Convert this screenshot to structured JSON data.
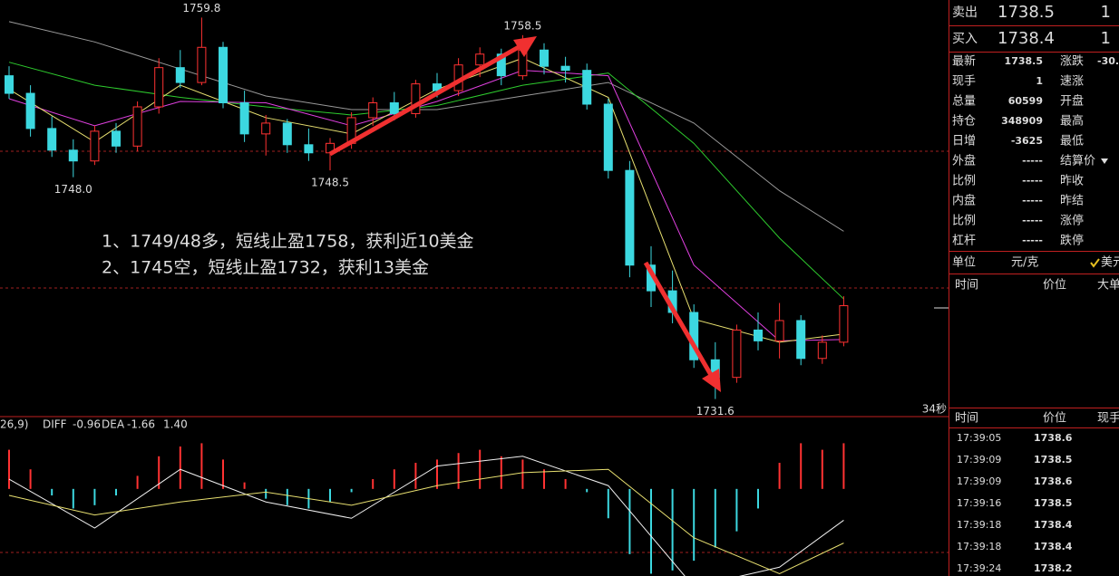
{
  "chart": {
    "ylim": [
      1730.3,
      1761.1
    ],
    "candles": [
      [
        1755.5,
        1756.2,
        1753.8,
        1754.2
      ],
      [
        1754.2,
        1754.8,
        1751.0,
        1751.6
      ],
      [
        1751.6,
        1752.5,
        1749.5,
        1750.0
      ],
      [
        1750.0,
        1750.8,
        1748.0,
        1749.2
      ],
      [
        1749.2,
        1751.8,
        1748.9,
        1751.4
      ],
      [
        1751.4,
        1752.0,
        1749.8,
        1750.3
      ],
      [
        1750.3,
        1753.6,
        1749.9,
        1753.2
      ],
      [
        1753.2,
        1756.8,
        1752.7,
        1756.1
      ],
      [
        1756.1,
        1757.4,
        1754.6,
        1755.0
      ],
      [
        1755.0,
        1759.8,
        1754.8,
        1757.6
      ],
      [
        1757.6,
        1758.0,
        1753.1,
        1753.5
      ],
      [
        1753.5,
        1754.4,
        1750.6,
        1751.2
      ],
      [
        1751.2,
        1752.6,
        1749.6,
        1752.0
      ],
      [
        1752.0,
        1752.3,
        1749.8,
        1750.4
      ],
      [
        1750.4,
        1751.6,
        1749.2,
        1749.8
      ],
      [
        1749.8,
        1750.9,
        1748.5,
        1750.5
      ],
      [
        1750.5,
        1752.8,
        1750.1,
        1752.4
      ],
      [
        1752.4,
        1753.9,
        1751.8,
        1753.5
      ],
      [
        1753.5,
        1754.3,
        1752.2,
        1752.7
      ],
      [
        1752.7,
        1755.2,
        1752.4,
        1754.9
      ],
      [
        1754.9,
        1755.7,
        1753.9,
        1754.4
      ],
      [
        1754.4,
        1756.8,
        1754.0,
        1756.3
      ],
      [
        1756.3,
        1757.6,
        1755.4,
        1757.1
      ],
      [
        1757.1,
        1757.5,
        1754.8,
        1755.5
      ],
      [
        1755.5,
        1758.5,
        1755.2,
        1757.4
      ],
      [
        1757.4,
        1757.9,
        1755.6,
        1756.2
      ],
      [
        1756.2,
        1756.9,
        1755.0,
        1755.9
      ],
      [
        1755.9,
        1756.4,
        1753.0,
        1753.4
      ],
      [
        1753.4,
        1753.8,
        1747.9,
        1748.5
      ],
      [
        1748.5,
        1749.2,
        1740.6,
        1741.5
      ],
      [
        1741.5,
        1742.9,
        1738.4,
        1739.6
      ],
      [
        1739.6,
        1741.1,
        1737.2,
        1738.0
      ],
      [
        1738.0,
        1738.6,
        1733.9,
        1734.5
      ],
      [
        1734.5,
        1735.8,
        1731.6,
        1733.2
      ],
      [
        1733.2,
        1737.1,
        1732.8,
        1736.7
      ],
      [
        1736.7,
        1738.0,
        1735.2,
        1735.9
      ],
      [
        1735.9,
        1738.7,
        1734.6,
        1737.4
      ],
      [
        1737.4,
        1737.8,
        1734.1,
        1734.6
      ],
      [
        1734.6,
        1736.3,
        1734.2,
        1735.8
      ],
      [
        1735.8,
        1739.2,
        1735.5,
        1738.5
      ]
    ],
    "ma_x": [
      0,
      4,
      8,
      12,
      16,
      20,
      24,
      28,
      32,
      36,
      39
    ],
    "ma": [
      {
        "color": "#9a9a9a",
        "values": [
          1759.5,
          1758.0,
          1756.0,
          1754.0,
          1753.0,
          1753.0,
          1754.0,
          1755.0,
          1752.0,
          1747.0,
          1744.0
        ]
      },
      {
        "color": "#2ecc2e",
        "values": [
          1756.5,
          1754.8,
          1753.9,
          1753.2,
          1752.6,
          1753.3,
          1754.8,
          1755.7,
          1750.5,
          1743.5,
          1739.0
        ]
      },
      {
        "color": "#e040e0",
        "values": [
          1753.8,
          1751.8,
          1753.6,
          1753.5,
          1751.8,
          1753.6,
          1755.9,
          1755.5,
          1741.5,
          1735.9,
          1736.0
        ]
      },
      {
        "color": "#e8e070",
        "values": [
          1754.5,
          1750.6,
          1754.8,
          1752.4,
          1751.2,
          1754.5,
          1756.8,
          1753.9,
          1737.5,
          1735.8,
          1736.4
        ]
      }
    ],
    "extreme_labels": [
      "1759.8",
      "1748.0",
      "1748.5",
      "1758.5",
      "1731.6"
    ],
    "notes": [
      "1、1749/48多，短线止盈1758，获利近10美金",
      "2、1745空，短线止盈1732，获利13美金"
    ],
    "timer": "34秒"
  },
  "macd": {
    "params": "26,9)",
    "ylim": [
      -2.67,
      1.8
    ],
    "hist": [
      1.2,
      0.6,
      -0.2,
      -0.6,
      -0.5,
      -0.2,
      0.4,
      1.0,
      1.3,
      1.4,
      0.9,
      0.2,
      -0.3,
      -0.5,
      -0.6,
      -0.4,
      -0.1,
      0.3,
      0.6,
      0.8,
      0.9,
      1.1,
      1.2,
      1.0,
      0.9,
      0.6,
      0.3,
      -0.1,
      -0.9,
      -2.0,
      -2.6,
      -2.5,
      -2.2,
      -1.8,
      -1.3,
      -0.6,
      0.8,
      1.4,
      1.2,
      1.4
    ],
    "diff": {
      "label": "DIFF",
      "value": -0.96,
      "color": "#f0f0f0",
      "values": [
        0.3,
        -1.2,
        0.6,
        -0.4,
        -0.9,
        0.7,
        1.0,
        0.1,
        -3.0,
        -2.4,
        -0.96
      ]
    },
    "dea": {
      "label": "DEA",
      "value": -1.66,
      "color": "#e8e070",
      "values": [
        -0.2,
        -0.8,
        -0.4,
        -0.1,
        -0.5,
        0.1,
        0.5,
        0.6,
        -1.5,
        -2.6,
        -1.66
      ]
    },
    "macd": {
      "value": 1.4,
      "label": "1.40"
    }
  },
  "quote": {
    "sell": [
      "卖出",
      "1738.5",
      "1"
    ],
    "buy": [
      "买入",
      "1738.4",
      "1"
    ],
    "stats": [
      [
        "最新",
        "1738.5",
        "涨跌",
        "-30."
      ],
      [
        "现手",
        "1",
        "速涨",
        ""
      ],
      [
        "总量",
        "60599",
        "开盘",
        ""
      ],
      [
        "持仓",
        "348909",
        "最高",
        ""
      ],
      [
        "日增",
        "-3625",
        "最低",
        ""
      ],
      [
        "外盘",
        "-----",
        "结算价",
        ""
      ],
      [
        "比例",
        "-----",
        "昨收",
        ""
      ],
      [
        "内盘",
        "-----",
        "昨结",
        ""
      ],
      [
        "比例",
        "-----",
        "涨停",
        ""
      ],
      [
        "杠杆",
        "-----",
        "跌停",
        ""
      ]
    ],
    "unit": [
      "单位",
      "元/克",
      "美元"
    ],
    "tick_header": [
      "时间",
      "价位",
      "大单"
    ],
    "trade_header": [
      "时间",
      "价位",
      "现手"
    ],
    "trades": [
      [
        "17:39:05",
        "1738.6"
      ],
      [
        "17:39:09",
        "1738.5"
      ],
      [
        "17:39:09",
        "1738.6"
      ],
      [
        "17:39:16",
        "1738.5"
      ],
      [
        "17:39:18",
        "1738.4"
      ],
      [
        "17:39:18",
        "1738.4"
      ],
      [
        "17:39:24",
        "1738.2"
      ]
    ]
  }
}
